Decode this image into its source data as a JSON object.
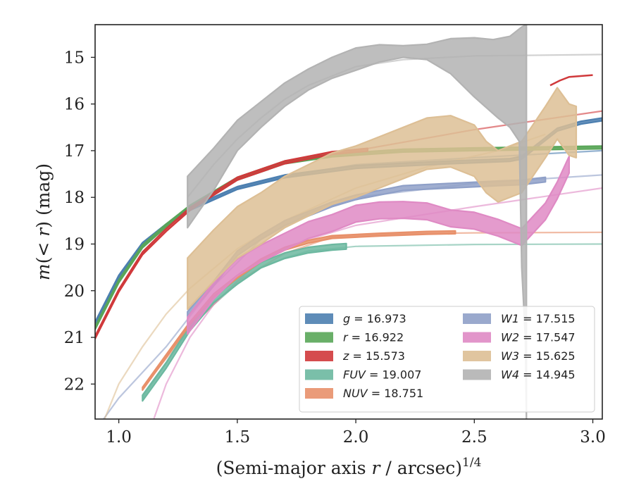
{
  "chart_data": {
    "type": "line",
    "title": "",
    "xlabel": "(Semi-major axis r / arcsec)^1/4",
    "ylabel": "m(< r) (mag)",
    "xlabel_parts": {
      "pre": "(Semi-major axis ",
      "var": "r",
      "post": " / arcsec)",
      "sup": "1/4"
    },
    "ylabel_parts": {
      "m": "m",
      "open": "(< ",
      "var": "r",
      "close": ") (mag)"
    },
    "xlim": [
      0.9,
      3.04
    ],
    "ylim": [
      22.75,
      14.3
    ],
    "y_inverted": true,
    "xticks": [
      1.0,
      1.5,
      2.0,
      2.5,
      3.0
    ],
    "xtick_labels": [
      "1.0",
      "1.5",
      "2.0",
      "2.5",
      "3.0"
    ],
    "yticks": [
      15,
      16,
      17,
      18,
      19,
      20,
      21,
      22
    ],
    "ytick_labels": [
      "15",
      "16",
      "17",
      "18",
      "19",
      "20",
      "21",
      "22"
    ],
    "grid": false,
    "legend_position": "lower-right",
    "legend_columns": 2,
    "series": [
      {
        "name": "g",
        "value": "16.973",
        "color": "#4c7fb0",
        "model": [
          [
            0.9,
            20.7
          ],
          [
            1.0,
            19.7
          ],
          [
            1.1,
            19.0
          ],
          [
            1.2,
            18.6
          ],
          [
            1.3,
            18.25
          ],
          [
            1.5,
            17.8
          ],
          [
            1.7,
            17.55
          ],
          [
            2.0,
            17.3
          ],
          [
            2.5,
            17.15
          ],
          [
            3.04,
            17.0
          ]
        ],
        "data": [
          [
            0.9,
            20.7
          ],
          [
            1.0,
            19.7
          ],
          [
            1.1,
            19.0
          ],
          [
            1.2,
            18.6
          ],
          [
            1.3,
            18.25
          ],
          [
            1.5,
            17.8
          ],
          [
            1.7,
            17.55
          ],
          [
            2.0,
            17.35
          ],
          [
            2.4,
            17.25
          ],
          [
            2.65,
            17.2
          ],
          [
            2.7,
            17.15
          ],
          [
            2.75,
            16.95
          ],
          [
            2.85,
            16.55
          ],
          [
            2.95,
            16.4
          ],
          [
            3.04,
            16.33
          ]
        ],
        "band": 0.03
      },
      {
        "name": "r",
        "value": "16.922",
        "color": "#59a658",
        "model": [
          [
            0.9,
            20.75
          ],
          [
            1.0,
            19.8
          ],
          [
            1.1,
            19.05
          ],
          [
            1.2,
            18.6
          ],
          [
            1.3,
            18.2
          ],
          [
            1.5,
            17.6
          ],
          [
            1.7,
            17.25
          ],
          [
            2.0,
            17.05
          ],
          [
            2.5,
            16.95
          ],
          [
            3.04,
            16.92
          ]
        ],
        "data": [
          [
            0.9,
            20.8
          ],
          [
            1.0,
            19.8
          ],
          [
            1.1,
            19.05
          ],
          [
            1.2,
            18.6
          ],
          [
            1.3,
            18.2
          ],
          [
            1.5,
            17.6
          ],
          [
            1.7,
            17.25
          ],
          [
            1.9,
            17.1
          ],
          [
            2.2,
            17.0
          ],
          [
            2.5,
            16.97
          ],
          [
            3.04,
            16.93
          ]
        ],
        "band": 0.03
      },
      {
        "name": "z",
        "value": "15.573",
        "color": "#d0393b",
        "model": [
          [
            0.9,
            21.0
          ],
          [
            1.0,
            20.0
          ],
          [
            1.1,
            19.2
          ],
          [
            1.2,
            18.65
          ],
          [
            1.3,
            18.2
          ],
          [
            1.5,
            17.6
          ],
          [
            1.7,
            17.25
          ],
          [
            2.0,
            17.0
          ],
          [
            2.5,
            16.55
          ],
          [
            3.04,
            16.15
          ]
        ],
        "data": [
          [
            0.9,
            21.0
          ],
          [
            1.0,
            20.0
          ],
          [
            1.1,
            19.2
          ],
          [
            1.2,
            18.7
          ],
          [
            1.3,
            18.25
          ],
          [
            1.5,
            17.6
          ],
          [
            1.7,
            17.25
          ],
          [
            1.9,
            17.05
          ],
          [
            2.05,
            16.98
          ]
        ],
        "tail": [
          [
            2.82,
            15.6
          ],
          [
            2.86,
            15.5
          ],
          [
            2.9,
            15.42
          ],
          [
            3.0,
            15.38
          ]
        ],
        "band": 0.03
      },
      {
        "name": "FUV",
        "value": "19.007",
        "color": "#6cb8a0",
        "model": [
          [
            1.1,
            22.3
          ],
          [
            1.3,
            20.8
          ],
          [
            1.4,
            20.3
          ],
          [
            1.5,
            19.85
          ],
          [
            1.6,
            19.5
          ],
          [
            1.7,
            19.3
          ],
          [
            1.8,
            19.15
          ],
          [
            2.0,
            19.05
          ],
          [
            2.5,
            19.01
          ],
          [
            3.04,
            19.0
          ]
        ],
        "data": [
          [
            1.1,
            22.3
          ],
          [
            1.2,
            21.6
          ],
          [
            1.3,
            20.8
          ],
          [
            1.4,
            20.2
          ],
          [
            1.5,
            19.8
          ],
          [
            1.6,
            19.45
          ],
          [
            1.7,
            19.25
          ],
          [
            1.8,
            19.13
          ],
          [
            1.9,
            19.07
          ],
          [
            1.96,
            19.05
          ]
        ],
        "band": 0.06
      },
      {
        "name": "NUV",
        "value": "18.751",
        "color": "#e8906a",
        "model": [
          [
            1.1,
            22.1
          ],
          [
            1.3,
            20.8
          ],
          [
            1.5,
            19.8
          ],
          [
            1.7,
            19.2
          ],
          [
            1.9,
            18.85
          ],
          [
            2.2,
            18.78
          ],
          [
            2.5,
            18.76
          ],
          [
            3.04,
            18.75
          ]
        ],
        "data": [
          [
            1.1,
            22.1
          ],
          [
            1.2,
            21.4
          ],
          [
            1.3,
            20.7
          ],
          [
            1.4,
            20.1
          ],
          [
            1.5,
            19.7
          ],
          [
            1.6,
            19.35
          ],
          [
            1.7,
            19.1
          ],
          [
            1.8,
            18.95
          ],
          [
            1.9,
            18.85
          ],
          [
            2.1,
            18.8
          ],
          [
            2.3,
            18.76
          ],
          [
            2.42,
            18.75
          ]
        ],
        "band": 0.03
      },
      {
        "name": "W1",
        "value": "17.515",
        "color": "#8fa0c8",
        "model": [
          [
            0.9,
            23.0
          ],
          [
            1.0,
            22.3
          ],
          [
            1.2,
            21.2
          ],
          [
            1.4,
            19.9
          ],
          [
            1.6,
            18.9
          ],
          [
            1.8,
            18.35
          ],
          [
            2.0,
            18.0
          ],
          [
            2.5,
            17.7
          ],
          [
            3.04,
            17.52
          ]
        ],
        "data": [
          [
            1.29,
            20.5
          ],
          [
            1.4,
            19.85
          ],
          [
            1.5,
            19.2
          ],
          [
            1.6,
            18.85
          ],
          [
            1.7,
            18.55
          ],
          [
            1.8,
            18.35
          ],
          [
            1.9,
            18.15
          ],
          [
            2.0,
            18.0
          ],
          [
            2.1,
            17.9
          ],
          [
            2.2,
            17.8
          ],
          [
            2.4,
            17.75
          ],
          [
            2.6,
            17.7
          ],
          [
            2.7,
            17.68
          ],
          [
            2.8,
            17.62
          ]
        ],
        "band": 0.05
      },
      {
        "name": "W2",
        "value": "17.547",
        "color": "#df8ac4",
        "model": [
          [
            1.13,
            23.0
          ],
          [
            1.2,
            22.0
          ],
          [
            1.3,
            21.0
          ],
          [
            1.4,
            20.3
          ],
          [
            1.5,
            19.8
          ],
          [
            1.6,
            19.35
          ],
          [
            1.8,
            18.9
          ],
          [
            2.0,
            18.6
          ],
          [
            2.5,
            18.2
          ],
          [
            3.04,
            17.8
          ]
        ],
        "data": [
          [
            1.29,
            20.75
          ],
          [
            1.4,
            20.0
          ],
          [
            1.5,
            19.5
          ],
          [
            1.6,
            19.2
          ],
          [
            1.7,
            18.95
          ],
          [
            1.8,
            18.7
          ],
          [
            1.9,
            18.55
          ],
          [
            2.0,
            18.35
          ],
          [
            2.1,
            18.28
          ],
          [
            2.2,
            18.27
          ],
          [
            2.3,
            18.3
          ],
          [
            2.4,
            18.45
          ],
          [
            2.5,
            18.5
          ],
          [
            2.6,
            18.65
          ],
          [
            2.7,
            18.85
          ],
          [
            2.8,
            18.3
          ],
          [
            2.85,
            17.85
          ],
          [
            2.9,
            17.3
          ]
        ],
        "band": 0.18
      },
      {
        "name": "W3",
        "value": "15.625",
        "color": "#ddbf95",
        "model": [
          [
            0.92,
            23.0
          ],
          [
            1.0,
            22.0
          ],
          [
            1.1,
            21.2
          ],
          [
            1.2,
            20.5
          ],
          [
            1.3,
            19.95
          ],
          [
            1.5,
            19.1
          ],
          [
            1.7,
            18.5
          ],
          [
            2.0,
            17.8
          ],
          [
            2.3,
            17.35
          ],
          [
            2.6,
            17.0
          ],
          [
            2.8,
            16.65
          ]
        ],
        "data": [
          [
            1.29,
            19.85
          ],
          [
            1.4,
            19.25
          ],
          [
            1.5,
            18.75
          ],
          [
            1.6,
            18.45
          ],
          [
            1.7,
            18.1
          ],
          [
            1.8,
            17.85
          ],
          [
            1.9,
            17.6
          ],
          [
            2.0,
            17.45
          ],
          [
            2.1,
            17.25
          ],
          [
            2.2,
            17.05
          ],
          [
            2.3,
            16.85
          ],
          [
            2.4,
            16.8
          ],
          [
            2.5,
            17.0
          ],
          [
            2.55,
            17.35
          ],
          [
            2.6,
            17.55
          ],
          [
            2.7,
            17.35
          ],
          [
            2.8,
            16.6
          ],
          [
            2.85,
            16.2
          ],
          [
            2.9,
            16.55
          ],
          [
            2.93,
            16.6
          ]
        ],
        "band": 0.55
      },
      {
        "name": "W4",
        "value": "14.945",
        "color": "#b3b3b3",
        "model": [
          [
            1.29,
            18.0
          ],
          [
            1.4,
            17.3
          ],
          [
            1.5,
            16.75
          ],
          [
            1.6,
            16.3
          ],
          [
            1.7,
            15.9
          ],
          [
            1.8,
            15.6
          ],
          [
            2.0,
            15.2
          ],
          [
            2.2,
            15.05
          ],
          [
            2.5,
            14.97
          ],
          [
            3.04,
            14.94
          ]
        ],
        "data_upper": [
          [
            1.29,
            17.55
          ],
          [
            1.4,
            16.95
          ],
          [
            1.5,
            16.35
          ],
          [
            1.6,
            15.95
          ],
          [
            1.7,
            15.55
          ],
          [
            1.8,
            15.25
          ],
          [
            1.9,
            15.0
          ],
          [
            2.0,
            14.8
          ],
          [
            2.1,
            14.73
          ],
          [
            2.2,
            14.75
          ],
          [
            2.3,
            14.72
          ],
          [
            2.4,
            14.6
          ],
          [
            2.5,
            14.58
          ],
          [
            2.58,
            14.62
          ],
          [
            2.65,
            14.55
          ],
          [
            2.7,
            14.35
          ],
          [
            2.72,
            14.3
          ]
        ],
        "data_lower": [
          [
            1.29,
            18.65
          ],
          [
            1.4,
            17.85
          ],
          [
            1.5,
            17.0
          ],
          [
            1.6,
            16.5
          ],
          [
            1.7,
            16.05
          ],
          [
            1.8,
            15.7
          ],
          [
            1.9,
            15.45
          ],
          [
            2.0,
            15.28
          ],
          [
            2.1,
            15.1
          ],
          [
            2.2,
            15.0
          ],
          [
            2.3,
            15.05
          ],
          [
            2.4,
            15.35
          ],
          [
            2.5,
            15.85
          ],
          [
            2.6,
            16.3
          ],
          [
            2.65,
            16.5
          ],
          [
            2.69,
            16.8
          ],
          [
            2.7,
            19.5
          ],
          [
            2.715,
            21.0
          ],
          [
            2.72,
            22.75
          ]
        ],
        "band": 0
      }
    ]
  }
}
